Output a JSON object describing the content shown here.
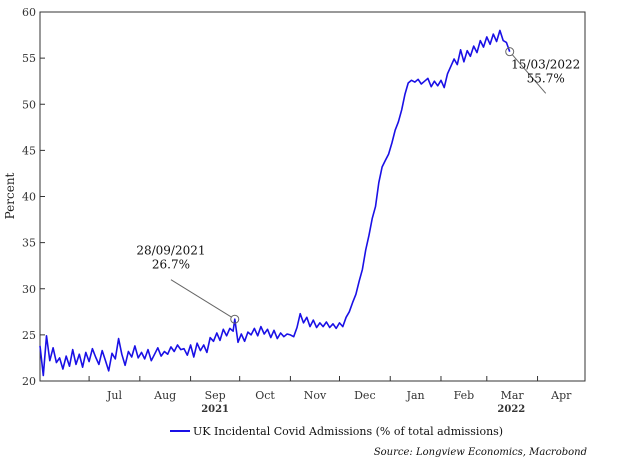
{
  "chart_data": {
    "type": "line",
    "title": "",
    "xlabel": "",
    "ylabel": "Percent",
    "ylim": [
      20,
      60
    ],
    "yticks": [
      20,
      25,
      30,
      35,
      40,
      45,
      50,
      55,
      60
    ],
    "x_range": [
      "2021-06-01",
      "2022-04-30"
    ],
    "month_ticks": [
      {
        "label": "Jul",
        "date": "2021-07-01"
      },
      {
        "label": "Aug",
        "date": "2021-08-01"
      },
      {
        "label": "Sep",
        "date": "2021-09-01"
      },
      {
        "label": "Oct",
        "date": "2021-10-01"
      },
      {
        "label": "Nov",
        "date": "2021-11-01"
      },
      {
        "label": "Dec",
        "date": "2021-12-01"
      },
      {
        "label": "Jan",
        "date": "2022-01-01"
      },
      {
        "label": "Feb",
        "date": "2022-02-01"
      },
      {
        "label": "Mar",
        "date": "2022-03-01"
      },
      {
        "label": "Apr",
        "date": "2022-04-01"
      }
    ],
    "year_labels": [
      {
        "label": "2021",
        "date": "2021-09-16"
      },
      {
        "label": "2022",
        "date": "2022-03-16"
      }
    ],
    "series": [
      {
        "name": "UK Incidental Covid Admissions (% of total admissions)",
        "color": "#1a10e6",
        "points": [
          [
            "2021-06-01",
            23.8
          ],
          [
            "2021-06-03",
            20.6
          ],
          [
            "2021-06-05",
            24.9
          ],
          [
            "2021-06-07",
            22.2
          ],
          [
            "2021-06-09",
            23.6
          ],
          [
            "2021-06-11",
            22.0
          ],
          [
            "2021-06-13",
            22.5
          ],
          [
            "2021-06-15",
            21.3
          ],
          [
            "2021-06-17",
            22.7
          ],
          [
            "2021-06-19",
            21.6
          ],
          [
            "2021-06-21",
            23.4
          ],
          [
            "2021-06-23",
            21.8
          ],
          [
            "2021-06-25",
            22.9
          ],
          [
            "2021-06-27",
            21.5
          ],
          [
            "2021-06-29",
            23.1
          ],
          [
            "2021-07-01",
            22.1
          ],
          [
            "2021-07-03",
            23.5
          ],
          [
            "2021-07-05",
            22.6
          ],
          [
            "2021-07-07",
            21.8
          ],
          [
            "2021-07-09",
            23.3
          ],
          [
            "2021-07-11",
            22.2
          ],
          [
            "2021-07-13",
            21.1
          ],
          [
            "2021-07-15",
            23.0
          ],
          [
            "2021-07-17",
            22.4
          ],
          [
            "2021-07-19",
            24.6
          ],
          [
            "2021-07-21",
            22.9
          ],
          [
            "2021-07-23",
            21.7
          ],
          [
            "2021-07-25",
            23.2
          ],
          [
            "2021-07-27",
            22.6
          ],
          [
            "2021-07-29",
            23.8
          ],
          [
            "2021-07-31",
            22.5
          ],
          [
            "2021-08-02",
            23.1
          ],
          [
            "2021-08-04",
            22.4
          ],
          [
            "2021-08-06",
            23.4
          ],
          [
            "2021-08-08",
            22.2
          ],
          [
            "2021-08-10",
            22.9
          ],
          [
            "2021-08-12",
            23.6
          ],
          [
            "2021-08-14",
            22.7
          ],
          [
            "2021-08-16",
            23.2
          ],
          [
            "2021-08-18",
            22.9
          ],
          [
            "2021-08-20",
            23.7
          ],
          [
            "2021-08-22",
            23.2
          ],
          [
            "2021-08-24",
            23.9
          ],
          [
            "2021-08-26",
            23.4
          ],
          [
            "2021-08-28",
            23.5
          ],
          [
            "2021-08-30",
            22.8
          ],
          [
            "2021-09-01",
            23.9
          ],
          [
            "2021-09-03",
            22.6
          ],
          [
            "2021-09-05",
            24.1
          ],
          [
            "2021-09-07",
            23.3
          ],
          [
            "2021-09-09",
            23.9
          ],
          [
            "2021-09-11",
            23.1
          ],
          [
            "2021-09-13",
            24.7
          ],
          [
            "2021-09-15",
            24.3
          ],
          [
            "2021-09-17",
            25.2
          ],
          [
            "2021-09-19",
            24.4
          ],
          [
            "2021-09-21",
            25.6
          ],
          [
            "2021-09-23",
            24.9
          ],
          [
            "2021-09-25",
            25.7
          ],
          [
            "2021-09-27",
            25.4
          ],
          [
            "2021-09-28",
            26.7
          ],
          [
            "2021-09-30",
            24.2
          ],
          [
            "2021-10-02",
            25.1
          ],
          [
            "2021-10-04",
            24.3
          ],
          [
            "2021-10-06",
            25.3
          ],
          [
            "2021-10-08",
            25.0
          ],
          [
            "2021-10-10",
            25.7
          ],
          [
            "2021-10-12",
            24.9
          ],
          [
            "2021-10-14",
            25.9
          ],
          [
            "2021-10-16",
            25.1
          ],
          [
            "2021-10-18",
            25.6
          ],
          [
            "2021-10-20",
            24.7
          ],
          [
            "2021-10-22",
            25.5
          ],
          [
            "2021-10-24",
            24.6
          ],
          [
            "2021-10-26",
            25.2
          ],
          [
            "2021-10-28",
            24.8
          ],
          [
            "2021-10-30",
            25.1
          ],
          [
            "2021-11-01",
            25.0
          ],
          [
            "2021-11-03",
            24.8
          ],
          [
            "2021-11-05",
            25.8
          ],
          [
            "2021-11-07",
            27.3
          ],
          [
            "2021-11-09",
            26.3
          ],
          [
            "2021-11-11",
            26.9
          ],
          [
            "2021-11-13",
            25.9
          ],
          [
            "2021-11-15",
            26.6
          ],
          [
            "2021-11-17",
            25.8
          ],
          [
            "2021-11-19",
            26.3
          ],
          [
            "2021-11-21",
            25.9
          ],
          [
            "2021-11-23",
            26.4
          ],
          [
            "2021-11-25",
            25.8
          ],
          [
            "2021-11-27",
            26.2
          ],
          [
            "2021-11-29",
            25.7
          ],
          [
            "2021-12-01",
            26.3
          ],
          [
            "2021-12-03",
            25.9
          ],
          [
            "2021-12-05",
            26.9
          ],
          [
            "2021-12-07",
            27.5
          ],
          [
            "2021-12-09",
            28.5
          ],
          [
            "2021-12-11",
            29.4
          ],
          [
            "2021-12-13",
            30.8
          ],
          [
            "2021-12-15",
            32.1
          ],
          [
            "2021-12-17",
            34.2
          ],
          [
            "2021-12-19",
            35.8
          ],
          [
            "2021-12-21",
            37.6
          ],
          [
            "2021-12-23",
            38.9
          ],
          [
            "2021-12-25",
            41.5
          ],
          [
            "2021-12-27",
            43.2
          ],
          [
            "2021-12-29",
            43.9
          ],
          [
            "2021-12-31",
            44.6
          ],
          [
            "2022-01-02",
            45.8
          ],
          [
            "2022-01-04",
            47.2
          ],
          [
            "2022-01-06",
            48.1
          ],
          [
            "2022-01-08",
            49.4
          ],
          [
            "2022-01-10",
            51.1
          ],
          [
            "2022-01-12",
            52.3
          ],
          [
            "2022-01-14",
            52.6
          ],
          [
            "2022-01-16",
            52.4
          ],
          [
            "2022-01-18",
            52.7
          ],
          [
            "2022-01-20",
            52.2
          ],
          [
            "2022-01-22",
            52.5
          ],
          [
            "2022-01-24",
            52.8
          ],
          [
            "2022-01-26",
            51.9
          ],
          [
            "2022-01-28",
            52.5
          ],
          [
            "2022-01-30",
            52.0
          ],
          [
            "2022-02-01",
            52.6
          ],
          [
            "2022-02-03",
            51.8
          ],
          [
            "2022-02-05",
            53.3
          ],
          [
            "2022-02-07",
            54.1
          ],
          [
            "2022-02-09",
            54.9
          ],
          [
            "2022-02-11",
            54.3
          ],
          [
            "2022-02-13",
            55.9
          ],
          [
            "2022-02-15",
            54.6
          ],
          [
            "2022-02-17",
            55.8
          ],
          [
            "2022-02-19",
            55.2
          ],
          [
            "2022-02-21",
            56.3
          ],
          [
            "2022-02-23",
            55.6
          ],
          [
            "2022-02-25",
            56.9
          ],
          [
            "2022-02-27",
            56.2
          ],
          [
            "2022-03-01",
            57.3
          ],
          [
            "2022-03-03",
            56.5
          ],
          [
            "2022-03-05",
            57.6
          ],
          [
            "2022-03-07",
            56.8
          ],
          [
            "2022-03-09",
            58.0
          ],
          [
            "2022-03-11",
            56.9
          ],
          [
            "2022-03-13",
            56.7
          ],
          [
            "2022-03-15",
            55.7
          ]
        ]
      }
    ],
    "annotations": [
      {
        "date": "2021-09-28",
        "value": 26.7,
        "line1": "28/09/2021",
        "line2": "26.7%",
        "text_anchor_date": "2021-08-20",
        "text_anchor_value": 32.5
      },
      {
        "date": "2022-03-15",
        "value": 55.7,
        "line1": "15/03/2022",
        "line2": "55.7%",
        "text_anchor_date": "2022-04-06",
        "text_anchor_value": 52.7
      }
    ],
    "legend": {
      "position": "bottom-center"
    },
    "source": "Source: Longview Economics, Macrobond",
    "grid": false
  }
}
